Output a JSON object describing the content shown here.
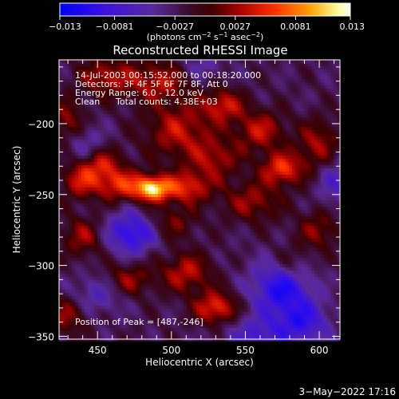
{
  "chart_data": {
    "type": "heatmap",
    "title": "Reconstructed RHESSI Image",
    "xlabel": "Heliocentric X (arcsec)",
    "ylabel": "Heliocentric Y (arcsec)",
    "xlim": [
      424,
      614
    ],
    "ylim": [
      -352,
      -155
    ],
    "x_ticks": [
      450,
      500,
      550,
      600
    ],
    "x_tick_labels": [
      "450",
      "500",
      "550",
      "600"
    ],
    "y_ticks": [
      -200,
      -250,
      -300,
      -350
    ],
    "y_tick_labels": [
      "−200",
      "−250",
      "−300",
      "−350"
    ],
    "colorbar": {
      "min": -0.013,
      "max": 0.013,
      "ticks": [
        -0.013,
        -0.0081,
        -0.0027,
        0.0027,
        0.0081,
        0.013
      ],
      "tick_labels": [
        "−0.013",
        "−0.0081",
        "−0.0027",
        "0.0027",
        "0.0081",
        "0.013"
      ],
      "units_prefix": "(photons cm",
      "units_exp1": "−2",
      "units_mid": " s",
      "units_exp2": "−1",
      "units_mid2": " asec",
      "units_exp3": "−2",
      "units_suffix": ")"
    },
    "annotations": {
      "time_range": "14-Jul-2003 00:15:52.000 to 00:18:20.000",
      "detectors": "Detectors: 3F 4F 5F 6F 7F 8F, Att 0",
      "energy": "Energy Range: 6.0 - 12.0 keV",
      "clean_label": "Clean",
      "total_counts": "Total counts: 4.38E+03",
      "peak": "Position of Peak = [487,-246]"
    },
    "peak": {
      "x": 487,
      "y": -246,
      "value": 0.013
    },
    "blobs": [
      {
        "x": 487,
        "y": -246,
        "amp": 0.0125,
        "sx": 8,
        "sy": 6
      },
      {
        "x": 465,
        "y": -243,
        "amp": 0.0075,
        "sx": 12,
        "sy": 8
      },
      {
        "x": 510,
        "y": -245,
        "amp": 0.0075,
        "sx": 12,
        "sy": 8
      },
      {
        "x": 452,
        "y": -228,
        "amp": 0.006,
        "sx": 10,
        "sy": 8
      },
      {
        "x": 438,
        "y": -240,
        "amp": 0.006,
        "sx": 9,
        "sy": 9
      },
      {
        "x": 505,
        "y": -205,
        "amp": 0.006,
        "sx": 16,
        "sy": 14
      },
      {
        "x": 535,
        "y": -187,
        "amp": 0.0065,
        "sx": 10,
        "sy": 8
      },
      {
        "x": 490,
        "y": -170,
        "amp": 0.006,
        "sx": 16,
        "sy": 10
      },
      {
        "x": 455,
        "y": -167,
        "amp": 0.0055,
        "sx": 12,
        "sy": 9
      },
      {
        "x": 575,
        "y": -232,
        "amp": 0.008,
        "sx": 10,
        "sy": 8
      },
      {
        "x": 560,
        "y": -205,
        "amp": 0.006,
        "sx": 12,
        "sy": 10
      },
      {
        "x": 600,
        "y": -215,
        "amp": 0.0055,
        "sx": 10,
        "sy": 12
      },
      {
        "x": 555,
        "y": -255,
        "amp": 0.005,
        "sx": 14,
        "sy": 10
      },
      {
        "x": 530,
        "y": -225,
        "amp": 0.005,
        "sx": 12,
        "sy": 10
      },
      {
        "x": 530,
        "y": -330,
        "amp": 0.008,
        "sx": 10,
        "sy": 8
      },
      {
        "x": 510,
        "y": -305,
        "amp": 0.006,
        "sx": 12,
        "sy": 10
      },
      {
        "x": 470,
        "y": -310,
        "amp": 0.005,
        "sx": 12,
        "sy": 8
      },
      {
        "x": 440,
        "y": -280,
        "amp": 0.005,
        "sx": 10,
        "sy": 10
      },
      {
        "x": 500,
        "y": -270,
        "amp": 0.004,
        "sx": 12,
        "sy": 8
      },
      {
        "x": 580,
        "y": -300,
        "amp": 0.004,
        "sx": 10,
        "sy": 10
      },
      {
        "x": 430,
        "y": -335,
        "amp": 0.005,
        "sx": 9,
        "sy": 9
      },
      {
        "x": 600,
        "y": -275,
        "amp": 0.0045,
        "sx": 10,
        "sy": 10
      },
      {
        "x": 430,
        "y": -200,
        "amp": 0.005,
        "sx": 8,
        "sy": 12
      },
      {
        "x": 473,
        "y": -277,
        "amp": -0.008,
        "sx": 12,
        "sy": 10
      },
      {
        "x": 575,
        "y": -315,
        "amp": -0.009,
        "sx": 14,
        "sy": 14
      },
      {
        "x": 590,
        "y": -340,
        "amp": -0.006,
        "sx": 12,
        "sy": 10
      },
      {
        "x": 450,
        "y": -320,
        "amp": -0.004,
        "sx": 12,
        "sy": 10
      },
      {
        "x": 560,
        "y": -350,
        "amp": -0.005,
        "sx": 16,
        "sy": 10
      },
      {
        "x": 440,
        "y": -215,
        "amp": -0.004,
        "sx": 10,
        "sy": 10
      },
      {
        "x": 610,
        "y": -240,
        "amp": -0.004,
        "sx": 8,
        "sy": 14
      },
      {
        "x": 520,
        "y": -160,
        "amp": -0.003,
        "sx": 10,
        "sy": 8
      }
    ],
    "grid": false
  },
  "footer": {
    "timestamp": "3−May−2022 17:16"
  }
}
